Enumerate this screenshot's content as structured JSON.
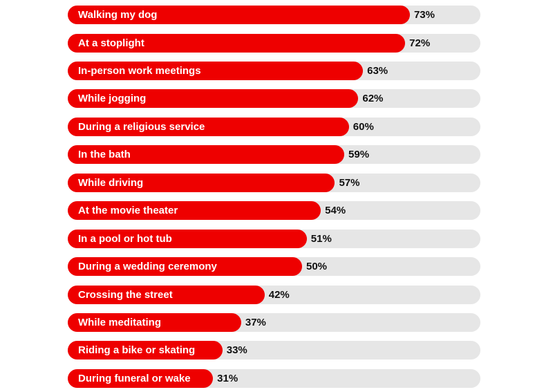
{
  "colors": {
    "bar": "#ee0000",
    "track": "#e6e6e6",
    "label_text": "#ffffff",
    "value_text": "#111111"
  },
  "chart_data": {
    "type": "bar",
    "orientation": "horizontal",
    "title": "",
    "xlabel": "",
    "ylabel": "",
    "xlim": [
      0,
      100
    ],
    "grid": false,
    "categories": [
      "Walking my dog",
      "At a stoplight",
      "In-person work meetings",
      "While jogging",
      "During a religious service",
      "In the bath",
      "While driving",
      "At the movie theater",
      "In a pool or hot tub",
      "During a wedding ceremony",
      "Crossing the street",
      "While meditating",
      "Riding a bike or skating",
      "During funeral or wake"
    ],
    "values": [
      73,
      72,
      63,
      62,
      60,
      59,
      57,
      54,
      51,
      50,
      42,
      37,
      33,
      31
    ],
    "value_labels": [
      "73%",
      "72%",
      "63%",
      "62%",
      "60%",
      "59%",
      "57%",
      "54%",
      "51%",
      "50%",
      "42%",
      "37%",
      "33%",
      "31%"
    ]
  }
}
